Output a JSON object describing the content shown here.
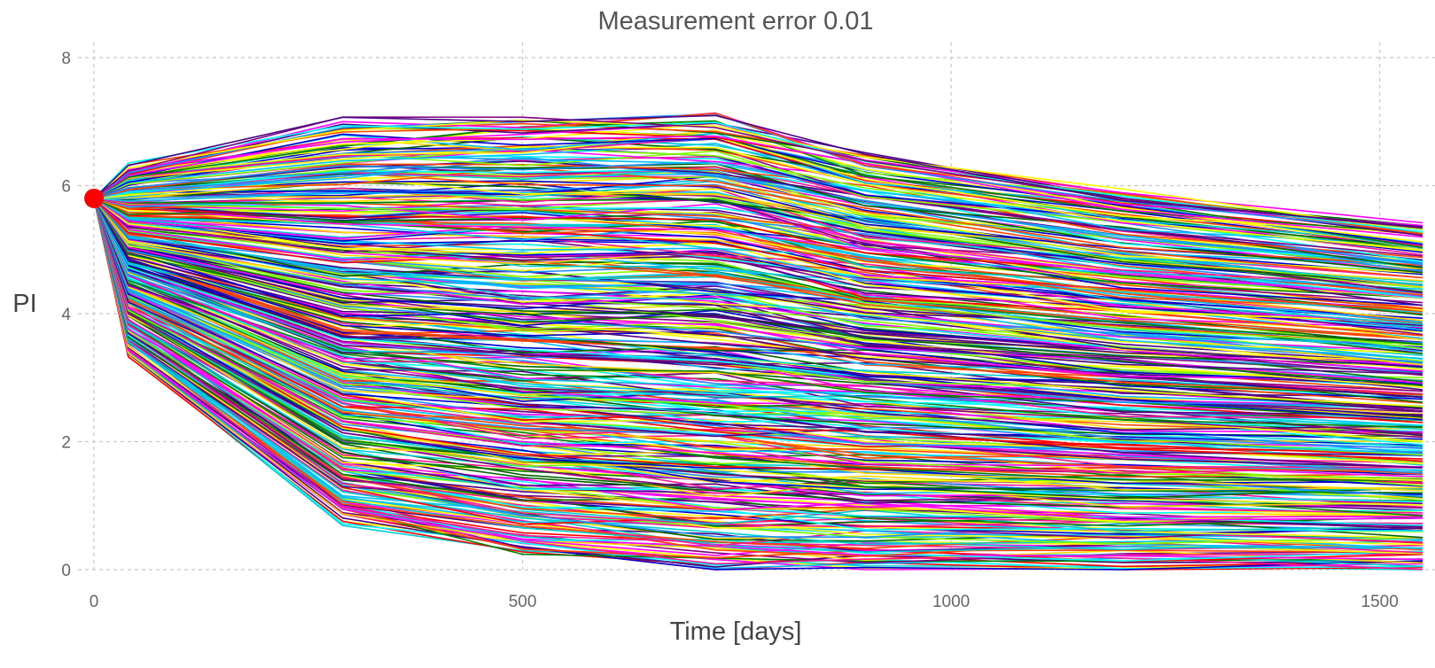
{
  "chart_data": {
    "type": "line",
    "title": "Measurement error 0.01",
    "xlabel": "Time [days]",
    "ylabel": "PI",
    "xlim": [
      0,
      1550
    ],
    "ylim": [
      0,
      8
    ],
    "x_ticks": [
      0,
      500,
      1000,
      1500
    ],
    "y_ticks": [
      0,
      2,
      4,
      6,
      8
    ],
    "grid": true,
    "legend": "none",
    "series_count": 400,
    "x": [
      0,
      40,
      290,
      500,
      725,
      900,
      1200,
      1550
    ],
    "envelope": {
      "upper": [
        5.8,
        6.3,
        6.95,
        7.05,
        7.1,
        6.5,
        5.9,
        5.4
      ],
      "lower": [
        5.8,
        3.35,
        0.75,
        0.25,
        0.0,
        0.0,
        0.0,
        0.0
      ]
    },
    "initial_point": {
      "x": 0,
      "y": 5.8,
      "color": "#ff0000"
    },
    "palette": [
      "#0000cc",
      "#00bfff",
      "#ffff00",
      "#ff0000",
      "#008000",
      "#ff00ff",
      "#00ffff",
      "#800080",
      "#7fff00",
      "#1e90ff",
      "#ff1493",
      "#006400",
      "#ffd700",
      "#4b0082",
      "#00ced1",
      "#ff4500"
    ]
  }
}
